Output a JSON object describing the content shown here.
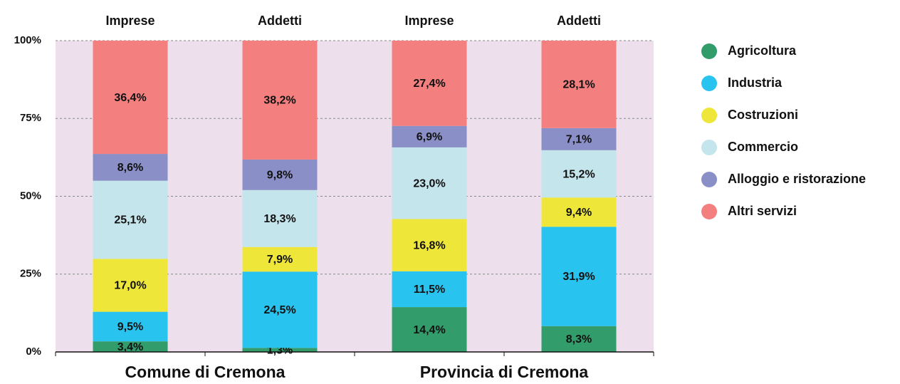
{
  "chart_data": {
    "type": "stacked_bar",
    "categories": [
      "Imprese",
      "Addetti",
      "Imprese",
      "Addetti"
    ],
    "groups": [
      "Comune di Cremona",
      "Provincia di Cremona"
    ],
    "series": [
      {
        "name": "Agricoltura",
        "color": "#339c6b",
        "values": [
          3.4,
          1.3,
          14.4,
          8.3
        ],
        "value_labels": [
          "3,4%",
          "1,3%",
          "14,4%",
          "8,3%"
        ]
      },
      {
        "name": "Industria",
        "color": "#29c3f0",
        "values": [
          9.5,
          24.5,
          11.5,
          31.9
        ],
        "value_labels": [
          "9,5%",
          "24,5%",
          "11,5%",
          "31,9%"
        ]
      },
      {
        "name": "Costruzioni",
        "color": "#eee73a",
        "values": [
          17.0,
          7.9,
          16.8,
          9.4
        ],
        "value_labels": [
          "17,0%",
          "7,9%",
          "16,8%",
          "9,4%"
        ]
      },
      {
        "name": "Commercio",
        "color": "#c4e5ec",
        "values": [
          25.1,
          18.3,
          23.0,
          15.2
        ],
        "value_labels": [
          "25,1%",
          "18,3%",
          "23,0%",
          "15,2%"
        ]
      },
      {
        "name": "Alloggio e ristorazione",
        "color": "#8b8fc8",
        "values": [
          8.6,
          9.8,
          6.9,
          7.1
        ],
        "value_labels": [
          "8,6%",
          "9,8%",
          "6,9%",
          "7,1%"
        ]
      },
      {
        "name": "Altri servizi",
        "color": "#f47f7f",
        "values": [
          36.4,
          38.2,
          27.4,
          28.1
        ],
        "value_labels": [
          "36,4%",
          "38,2%",
          "27,4%",
          "28,1%"
        ]
      }
    ],
    "ylim": [
      0,
      100
    ],
    "yticks": [
      {
        "value": 0,
        "label": "0%"
      },
      {
        "value": 25,
        "label": "25%"
      },
      {
        "value": 50,
        "label": "50%"
      },
      {
        "value": 75,
        "label": "75%"
      },
      {
        "value": 100,
        "label": "100%"
      }
    ],
    "grid": true,
    "legend": "right",
    "background": "#ede0ec"
  }
}
